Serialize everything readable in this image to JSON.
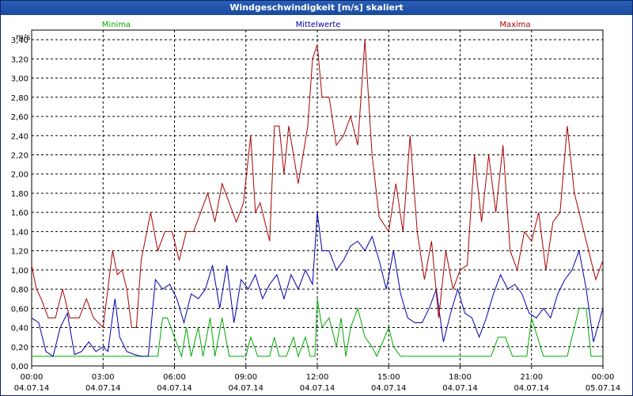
{
  "window": {
    "title": "Windgeschwindigkeit [m/s] skaliert"
  },
  "colors": {
    "min": "#00aa00",
    "mean": "#0000aa",
    "max": "#aa0000"
  },
  "chart_data": {
    "type": "line",
    "title": "Windgeschwindigkeit [m/s] skaliert",
    "ylabel": "m/s",
    "ylim": [
      0,
      3.5
    ],
    "y_ticks": [
      "0,00",
      "0,20",
      "0,40",
      "0,60",
      "0,80",
      "1,00",
      "1,20",
      "1,40",
      "1,60",
      "1,80",
      "2,00",
      "2,20",
      "2,40",
      "2,60",
      "2,80",
      "3,00",
      "3,20",
      "3,40"
    ],
    "x_ticks": [
      {
        "time": "00:00",
        "date": "04.07.14"
      },
      {
        "time": "03:00",
        "date": "04.07.14"
      },
      {
        "time": "06:00",
        "date": "04.07.14"
      },
      {
        "time": "09:00",
        "date": "04.07.14"
      },
      {
        "time": "12:00",
        "date": "04.07.14"
      },
      {
        "time": "15:00",
        "date": "04.07.14"
      },
      {
        "time": "18:00",
        "date": "04.07.14"
      },
      {
        "time": "21:00",
        "date": "04.07.14"
      },
      {
        "time": "00:00",
        "date": "05.07.14"
      }
    ],
    "x_hours": [
      0,
      24
    ],
    "series": [
      {
        "name": "Minima",
        "hours": [
          0,
          0.5,
          1,
          1.5,
          2,
          2.5,
          3,
          3.5,
          4,
          4.5,
          5,
          5.3,
          5.5,
          5.7,
          6,
          6.3,
          6.5,
          6.7,
          7,
          7.2,
          7.5,
          7.7,
          8,
          8.3,
          8.5,
          8.7,
          9,
          9.2,
          9.5,
          9.8,
          10,
          10.2,
          10.4,
          10.7,
          11,
          11.2,
          11.5,
          11.7,
          11.9,
          12,
          12.2,
          12.5,
          12.8,
          13,
          13.2,
          13.4,
          13.7,
          14,
          14.3,
          14.5,
          15,
          15.2,
          15.5,
          15.8,
          16,
          16.5,
          17,
          17.5,
          18,
          18.5,
          19,
          19.3,
          19.6,
          19.9,
          20.2,
          20.5,
          20.8,
          21,
          21.5,
          22,
          22.5,
          22.8,
          23,
          23.3,
          23.5,
          24
        ],
        "values": [
          0.1,
          0.1,
          0.1,
          0.1,
          0.1,
          0.1,
          0.1,
          0.1,
          0.1,
          0.1,
          0.1,
          0.1,
          0.5,
          0.5,
          0.3,
          0.1,
          0.4,
          0.1,
          0.4,
          0.1,
          0.5,
          0.1,
          0.5,
          0.1,
          0.1,
          0.1,
          0.1,
          0.3,
          0.1,
          0.1,
          0.1,
          0.3,
          0.1,
          0.1,
          0.3,
          0.1,
          0.3,
          0.1,
          0.1,
          0.7,
          0.4,
          0.5,
          0.2,
          0.5,
          0.1,
          0.4,
          0.6,
          0.3,
          0.2,
          0.1,
          0.4,
          0.2,
          0.1,
          0.1,
          0.1,
          0.1,
          0.1,
          0.1,
          0.1,
          0.1,
          0.1,
          0.1,
          0.3,
          0.3,
          0.1,
          0.1,
          0.1,
          0.5,
          0.1,
          0.1,
          0.1,
          0.4,
          0.6,
          0.6,
          0.1,
          0.1
        ]
      },
      {
        "name": "Mittelwerte",
        "hours": [
          0,
          0.3,
          0.6,
          0.9,
          1.2,
          1.5,
          1.8,
          2.1,
          2.4,
          2.7,
          3,
          3.2,
          3.5,
          3.7,
          4,
          4.3,
          4.6,
          4.9,
          5.2,
          5.5,
          5.8,
          6.1,
          6.4,
          6.7,
          7,
          7.3,
          7.6,
          7.9,
          8.2,
          8.5,
          8.8,
          9.1,
          9.4,
          9.7,
          10,
          10.3,
          10.6,
          10.9,
          11.2,
          11.5,
          11.8,
          12,
          12.2,
          12.5,
          12.8,
          13.1,
          13.4,
          13.7,
          14,
          14.3,
          14.6,
          14.9,
          15.2,
          15.5,
          15.8,
          16.1,
          16.4,
          16.7,
          17,
          17.3,
          17.6,
          17.9,
          18.2,
          18.5,
          18.8,
          19.1,
          19.4,
          19.7,
          20,
          20.3,
          20.6,
          20.9,
          21.2,
          21.5,
          21.8,
          22.1,
          22.4,
          22.7,
          23,
          23.3,
          23.6,
          24
        ],
        "values": [
          0.5,
          0.45,
          0.15,
          0.1,
          0.4,
          0.55,
          0.12,
          0.15,
          0.25,
          0.15,
          0.2,
          0.15,
          0.7,
          0.3,
          0.15,
          0.12,
          0.1,
          0.1,
          0.9,
          0.8,
          0.85,
          0.7,
          0.45,
          0.75,
          0.7,
          0.8,
          1.05,
          0.6,
          1.05,
          0.45,
          0.9,
          0.8,
          0.95,
          0.7,
          0.85,
          0.95,
          0.7,
          0.95,
          0.8,
          1.0,
          0.85,
          1.6,
          1.2,
          1.2,
          1.0,
          1.1,
          1.25,
          1.3,
          1.2,
          1.35,
          1.1,
          0.8,
          1.2,
          0.75,
          0.5,
          0.45,
          0.45,
          0.6,
          0.8,
          0.25,
          0.55,
          0.8,
          0.55,
          0.5,
          0.3,
          0.5,
          0.75,
          0.95,
          0.8,
          0.85,
          0.75,
          0.55,
          0.5,
          0.6,
          0.5,
          0.75,
          0.9,
          1.0,
          1.2,
          0.8,
          0.25,
          0.6
        ]
      },
      {
        "name": "Maxima",
        "hours": [
          0,
          0.2,
          0.4,
          0.7,
          1,
          1.3,
          1.6,
          2,
          2.3,
          2.6,
          3,
          3.2,
          3.4,
          3.6,
          3.8,
          4,
          4.2,
          4.4,
          4.6,
          5,
          5.3,
          5.6,
          5.9,
          6.2,
          6.5,
          6.8,
          7.1,
          7.4,
          7.7,
          8,
          8.3,
          8.6,
          8.9,
          9.2,
          9.4,
          9.6,
          9.8,
          10,
          10.2,
          10.4,
          10.6,
          10.8,
          11,
          11.2,
          11.4,
          11.6,
          11.8,
          12,
          12.2,
          12.5,
          12.8,
          13.1,
          13.4,
          13.7,
          14,
          14.3,
          14.6,
          15,
          15.3,
          15.6,
          15.9,
          16.2,
          16.5,
          16.8,
          17.1,
          17.4,
          17.7,
          18,
          18.3,
          18.6,
          18.9,
          19.2,
          19.5,
          19.8,
          20.1,
          20.4,
          20.7,
          21,
          21.3,
          21.6,
          21.9,
          22.2,
          22.5,
          22.8,
          23.1,
          23.4,
          23.7,
          24
        ],
        "values": [
          1.05,
          0.8,
          0.7,
          0.5,
          0.5,
          0.8,
          0.5,
          0.5,
          0.7,
          0.5,
          0.4,
          0.8,
          1.2,
          0.95,
          1.0,
          0.8,
          0.4,
          0.4,
          1.1,
          1.6,
          1.2,
          1.4,
          1.4,
          1.1,
          1.4,
          1.4,
          1.6,
          1.8,
          1.5,
          1.9,
          1.7,
          1.5,
          1.7,
          2.4,
          1.6,
          1.7,
          1.5,
          1.3,
          2.5,
          2.5,
          2.0,
          2.5,
          2.2,
          1.9,
          2.2,
          2.5,
          3.2,
          3.35,
          2.8,
          2.8,
          2.3,
          2.4,
          2.6,
          2.3,
          3.4,
          2.2,
          1.55,
          1.4,
          1.9,
          1.4,
          2.4,
          1.4,
          0.9,
          1.3,
          0.5,
          1.2,
          0.8,
          1.0,
          1.05,
          2.2,
          1.5,
          2.2,
          1.6,
          2.3,
          1.2,
          1.0,
          1.4,
          1.3,
          1.6,
          1.0,
          1.5,
          1.6,
          2.5,
          1.8,
          1.5,
          1.2,
          0.9,
          1.1
        ]
      }
    ]
  }
}
